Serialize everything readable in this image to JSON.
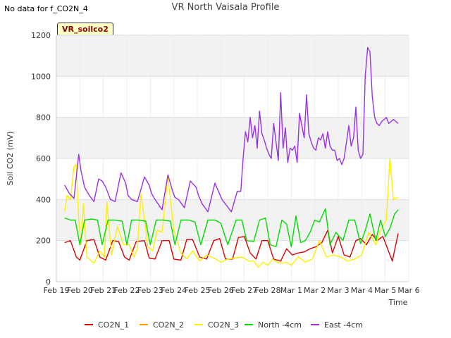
{
  "header": {
    "nodata": "No data for f_CO2N_4",
    "badge": "VR_soilco2"
  },
  "chart_data": {
    "type": "line",
    "title": "VR North Vaisala Profile",
    "xlabel": "Time",
    "ylabel": "Soil CO2 (mV)",
    "x_ticks": [
      "Feb 19",
      "Feb 20",
      "Feb 21",
      "Feb 22",
      "Feb 23",
      "Feb 24",
      "Feb 25",
      "Feb 26",
      "Feb 27",
      "Feb 28",
      "Mar 1",
      "Mar 2",
      "Mar 3",
      "Mar 4",
      "Mar 5",
      "Mar 6"
    ],
    "xlim": [
      0,
      15
    ],
    "ylim": [
      0,
      1200
    ],
    "y_ticks": [
      0,
      200,
      400,
      600,
      800,
      1000,
      1200
    ],
    "grid": true,
    "legend_position": "bottom",
    "series": [
      {
        "name": "CO2N_1",
        "color": "#dd0000",
        "x": [
          0.35,
          0.6,
          0.85,
          1.0,
          1.3,
          1.6,
          1.85,
          2.1,
          2.4,
          2.65,
          2.9,
          3.1,
          3.4,
          3.75,
          3.95,
          4.2,
          4.5,
          4.8,
          5.0,
          5.3,
          5.55,
          5.8,
          6.1,
          6.4,
          6.7,
          6.95,
          7.2,
          7.5,
          7.75,
          8.0,
          8.25,
          8.5,
          8.75,
          9.0,
          9.25,
          9.55,
          9.8,
          10.05,
          10.3,
          10.55,
          10.8,
          11.05,
          11.3,
          11.55,
          11.75,
          12.0,
          12.25,
          12.5,
          12.75,
          12.95,
          13.2,
          13.45,
          13.65,
          13.9,
          14.1,
          14.3,
          14.55
        ],
        "values": [
          190,
          200,
          120,
          105,
          200,
          205,
          120,
          105,
          200,
          195,
          120,
          105,
          195,
          200,
          115,
          110,
          200,
          200,
          110,
          105,
          205,
          205,
          120,
          110,
          200,
          210,
          110,
          110,
          215,
          220,
          140,
          110,
          200,
          200,
          110,
          100,
          160,
          130,
          140,
          145,
          160,
          170,
          190,
          250,
          140,
          220,
          130,
          120,
          200,
          210,
          180,
          230,
          200,
          220,
          160,
          100,
          235
        ]
      },
      {
        "name": "CO2N_2",
        "color": "#ff9900",
        "x": [],
        "values": []
      },
      {
        "name": "CO2N_3",
        "color": "#ffee00",
        "x": [
          0.35,
          0.45,
          0.6,
          0.75,
          0.85,
          0.95,
          1.05,
          1.15,
          1.3,
          1.6,
          1.85,
          2.05,
          2.15,
          2.35,
          2.6,
          2.85,
          3.1,
          3.3,
          3.45,
          3.6,
          3.9,
          4.1,
          4.3,
          4.5,
          4.75,
          5.0,
          5.3,
          5.55,
          5.8,
          6.1,
          6.4,
          6.7,
          7.0,
          7.3,
          7.6,
          7.9,
          8.2,
          8.4,
          8.6,
          8.8,
          9.0,
          9.2,
          9.4,
          9.6,
          9.8,
          10.0,
          10.3,
          10.6,
          10.9,
          11.2,
          11.5,
          11.8,
          12.1,
          12.4,
          12.7,
          13.0,
          13.3,
          13.6,
          13.8,
          13.95,
          14.05,
          14.2,
          14.35,
          14.55
        ],
        "values": [
          340,
          420,
          400,
          560,
          570,
          300,
          180,
          380,
          120,
          90,
          150,
          120,
          390,
          130,
          270,
          180,
          180,
          120,
          160,
          430,
          170,
          150,
          250,
          240,
          510,
          250,
          140,
          110,
          150,
          100,
          130,
          115,
          95,
          110,
          115,
          120,
          100,
          100,
          70,
          95,
          80,
          110,
          95,
          90,
          95,
          80,
          120,
          95,
          110,
          200,
          120,
          130,
          120,
          100,
          110,
          130,
          240,
          180,
          250,
          280,
          300,
          600,
          400,
          410
        ]
      },
      {
        "name": "North -4cm",
        "color": "#00dd00",
        "x": [
          0.35,
          0.6,
          0.8,
          1.0,
          1.2,
          1.5,
          1.75,
          1.95,
          2.2,
          2.5,
          2.8,
          3.0,
          3.2,
          3.5,
          3.8,
          4.0,
          4.25,
          4.55,
          4.85,
          5.05,
          5.3,
          5.65,
          5.9,
          6.15,
          6.45,
          6.75,
          7.0,
          7.3,
          7.65,
          7.9,
          8.1,
          8.4,
          8.65,
          8.9,
          9.1,
          9.35,
          9.6,
          9.8,
          10.0,
          10.2,
          10.4,
          10.6,
          10.8,
          11.0,
          11.2,
          11.45,
          11.65,
          11.9,
          12.2,
          12.45,
          12.7,
          12.95,
          13.15,
          13.35,
          13.6,
          13.8,
          14.0,
          14.2,
          14.4,
          14.55
        ],
        "values": [
          310,
          300,
          300,
          180,
          300,
          305,
          300,
          180,
          300,
          300,
          295,
          180,
          300,
          300,
          295,
          180,
          300,
          300,
          295,
          180,
          300,
          300,
          290,
          180,
          300,
          300,
          285,
          180,
          300,
          300,
          200,
          195,
          300,
          310,
          180,
          170,
          300,
          280,
          170,
          320,
          190,
          200,
          240,
          300,
          290,
          355,
          180,
          240,
          200,
          300,
          300,
          185,
          250,
          330,
          200,
          300,
          220,
          260,
          330,
          350
        ]
      },
      {
        "name": "East -4cm",
        "color": "#9b30e8",
        "x": [
          0.35,
          0.55,
          0.75,
          0.95,
          1.05,
          1.2,
          1.4,
          1.6,
          1.8,
          1.95,
          2.1,
          2.3,
          2.5,
          2.75,
          2.95,
          3.05,
          3.2,
          3.45,
          3.75,
          3.95,
          4.05,
          4.2,
          4.5,
          4.75,
          4.95,
          5.05,
          5.2,
          5.45,
          5.7,
          5.95,
          6.05,
          6.2,
          6.45,
          6.75,
          6.9,
          7.05,
          7.25,
          7.45,
          7.7,
          7.85,
          7.95,
          8.05,
          8.15,
          8.25,
          8.35,
          8.45,
          8.55,
          8.65,
          8.75,
          8.85,
          8.95,
          9.05,
          9.15,
          9.25,
          9.35,
          9.45,
          9.55,
          9.65,
          9.75,
          9.85,
          9.95,
          10.05,
          10.15,
          10.25,
          10.35,
          10.45,
          10.55,
          10.65,
          10.75,
          10.85,
          10.95,
          11.05,
          11.15,
          11.25,
          11.35,
          11.45,
          11.55,
          11.65,
          11.75,
          11.85,
          11.95,
          12.05,
          12.15,
          12.25,
          12.35,
          12.45,
          12.55,
          12.65,
          12.75,
          12.85,
          12.95,
          13.05,
          13.15,
          13.25,
          13.35,
          13.45,
          13.55,
          13.65,
          13.75,
          13.85,
          13.95,
          14.05,
          14.15,
          14.25,
          14.35,
          14.45,
          14.55
        ],
        "values": [
          470,
          430,
          405,
          620,
          540,
          460,
          420,
          390,
          500,
          490,
          460,
          400,
          390,
          530,
          480,
          420,
          400,
          390,
          510,
          470,
          430,
          400,
          350,
          520,
          440,
          410,
          400,
          360,
          490,
          460,
          420,
          380,
          340,
          480,
          440,
          400,
          370,
          340,
          440,
          440,
          600,
          730,
          680,
          800,
          700,
          760,
          650,
          830,
          720,
          690,
          650,
          620,
          600,
          770,
          680,
          590,
          920,
          650,
          750,
          580,
          650,
          640,
          660,
          580,
          820,
          760,
          700,
          910,
          720,
          680,
          650,
          640,
          700,
          690,
          720,
          650,
          730,
          660,
          640,
          640,
          590,
          600,
          570,
          600,
          680,
          760,
          660,
          700,
          850,
          640,
          600,
          620,
          1000,
          1140,
          1120,
          900,
          800,
          770,
          760,
          780,
          790,
          800,
          770,
          780,
          790,
          780,
          770
        ]
      }
    ]
  }
}
